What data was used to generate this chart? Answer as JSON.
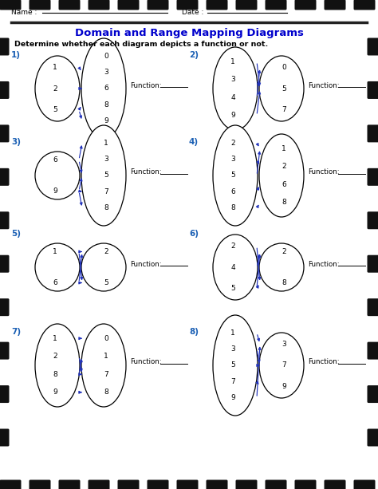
{
  "title": "Domain and Range Mapping Diagrams",
  "subtitle": "Determine whether each diagram depicts a function or not.",
  "bg_color": "#ffffff",
  "title_color": "#0000cc",
  "diagrams": [
    {
      "number": "1)",
      "left_vals": [
        "1",
        "2",
        "5"
      ],
      "right_vals": [
        "0",
        "3",
        "6",
        "8",
        "9"
      ],
      "arrows": [
        [
          0,
          1
        ],
        [
          1,
          2
        ],
        [
          2,
          3
        ],
        [
          2,
          4
        ]
      ],
      "col": 0,
      "row": 0
    },
    {
      "number": "2)",
      "left_vals": [
        "1",
        "3",
        "4",
        "9"
      ],
      "right_vals": [
        "0",
        "5",
        "7"
      ],
      "arrows": [
        [
          0,
          1
        ],
        [
          1,
          1
        ],
        [
          2,
          0
        ],
        [
          3,
          1
        ]
      ],
      "col": 1,
      "row": 0
    },
    {
      "number": "3)",
      "left_vals": [
        "6",
        "9"
      ],
      "right_vals": [
        "1",
        "3",
        "5",
        "7",
        "8"
      ],
      "arrows": [
        [
          0,
          0
        ],
        [
          0,
          2
        ],
        [
          1,
          2
        ],
        [
          1,
          3
        ],
        [
          1,
          4
        ]
      ],
      "col": 0,
      "row": 1
    },
    {
      "number": "4)",
      "left_vals": [
        "2",
        "3",
        "5",
        "6",
        "8"
      ],
      "right_vals": [
        "1",
        "2",
        "6",
        "8"
      ],
      "arrows": [
        [
          0,
          0
        ],
        [
          1,
          1
        ],
        [
          2,
          0
        ],
        [
          3,
          2
        ],
        [
          4,
          3
        ]
      ],
      "col": 1,
      "row": 1
    },
    {
      "number": "5)",
      "left_vals": [
        "1",
        "6"
      ],
      "right_vals": [
        "2",
        "5"
      ],
      "arrows": [
        [
          0,
          0
        ],
        [
          0,
          1
        ],
        [
          1,
          0
        ],
        [
          1,
          1
        ]
      ],
      "col": 0,
      "row": 2
    },
    {
      "number": "6)",
      "left_vals": [
        "2",
        "4",
        "5"
      ],
      "right_vals": [
        "2",
        "8"
      ],
      "arrows": [
        [
          0,
          1
        ],
        [
          1,
          0
        ],
        [
          2,
          0
        ],
        [
          2,
          1
        ]
      ],
      "col": 1,
      "row": 2
    },
    {
      "number": "7)",
      "left_vals": [
        "1",
        "2",
        "8",
        "9"
      ],
      "right_vals": [
        "0",
        "1",
        "7",
        "8"
      ],
      "arrows": [
        [
          0,
          0
        ],
        [
          1,
          2
        ],
        [
          2,
          1
        ],
        [
          2,
          2
        ],
        [
          3,
          3
        ]
      ],
      "col": 0,
      "row": 3
    },
    {
      "number": "8)",
      "left_vals": [
        "1",
        "3",
        "5",
        "7",
        "9"
      ],
      "right_vals": [
        "3",
        "7",
        "9"
      ],
      "arrows": [
        [
          0,
          0
        ],
        [
          1,
          1
        ],
        [
          2,
          1
        ],
        [
          3,
          2
        ],
        [
          4,
          0
        ]
      ],
      "col": 1,
      "row": 3
    }
  ]
}
